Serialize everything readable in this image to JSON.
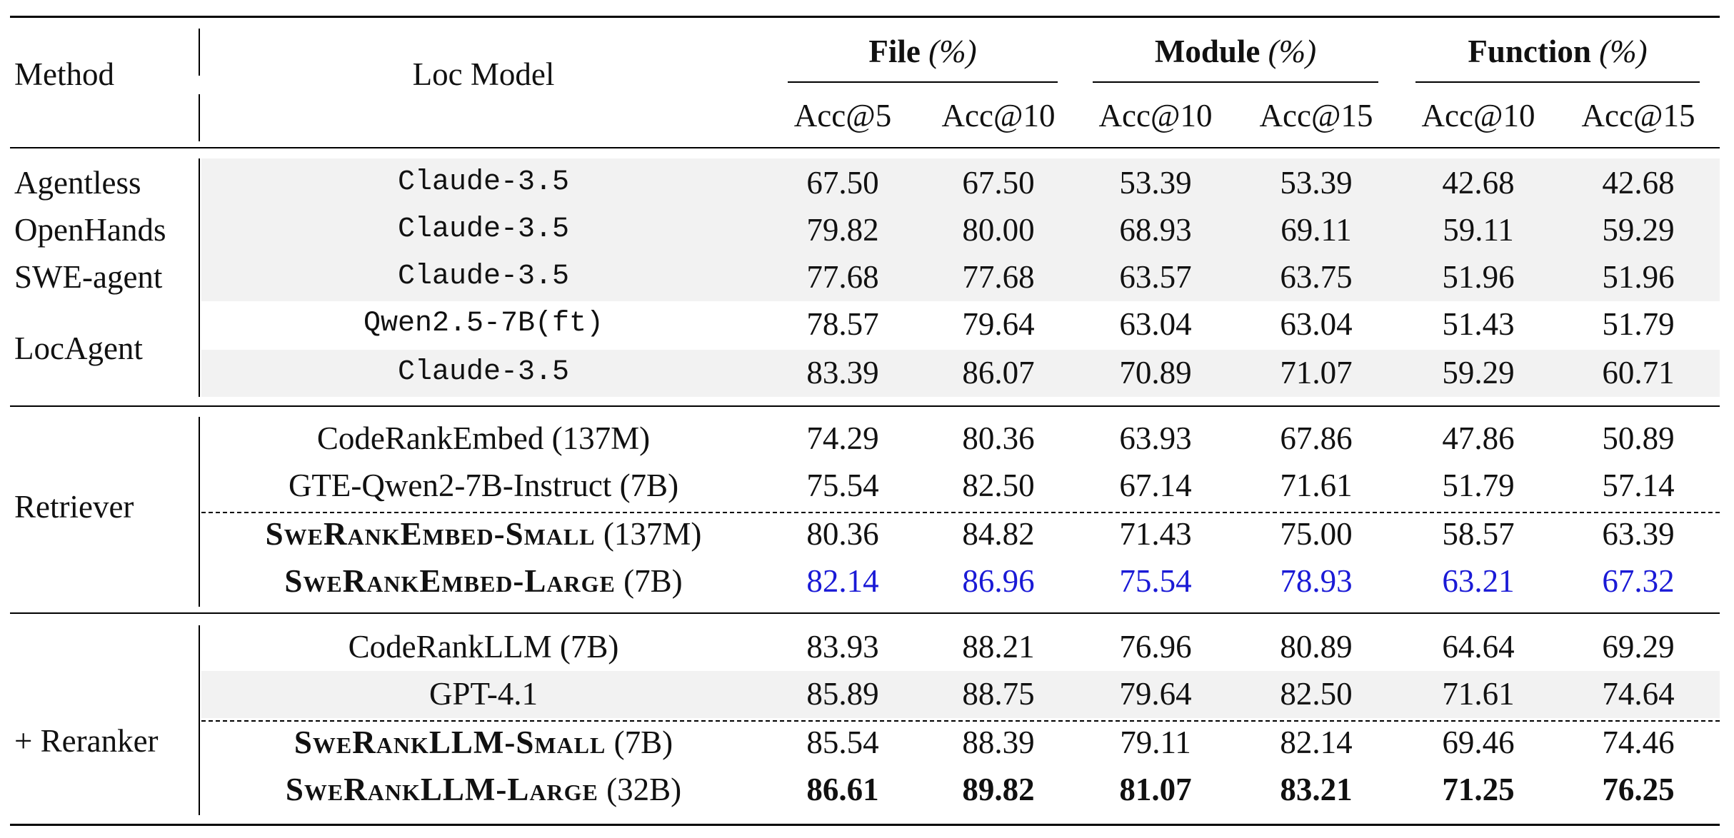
{
  "header": {
    "method": "Method",
    "loc_model": "Loc Model",
    "groups": [
      {
        "name": "File",
        "unit": "(%)",
        "cols": [
          "Acc@5",
          "Acc@10"
        ]
      },
      {
        "name": "Module",
        "unit": "(%)",
        "cols": [
          "Acc@10",
          "Acc@15"
        ]
      },
      {
        "name": "Function",
        "unit": "(%)",
        "cols": [
          "Acc@10",
          "Acc@15"
        ]
      }
    ]
  },
  "sections": {
    "agents": {
      "rows": [
        {
          "method": "Agentless",
          "model": "Claude-3.5",
          "values": [
            "67.50",
            "67.50",
            "53.39",
            "53.39",
            "42.68",
            "42.68"
          ]
        },
        {
          "method": "OpenHands",
          "model": "Claude-3.5",
          "values": [
            "79.82",
            "80.00",
            "68.93",
            "69.11",
            "59.11",
            "59.29"
          ]
        },
        {
          "method": "SWE-agent",
          "model": "Claude-3.5",
          "values": [
            "77.68",
            "77.68",
            "63.57",
            "63.75",
            "51.96",
            "51.96"
          ]
        },
        {
          "method": "LocAgent",
          "model": "Qwen2.5-7B(ft)",
          "values": [
            "78.57",
            "79.64",
            "63.04",
            "63.04",
            "51.43",
            "51.79"
          ]
        },
        {
          "method": "",
          "model": "Claude-3.5",
          "values": [
            "83.39",
            "86.07",
            "70.89",
            "71.07",
            "59.29",
            "60.71"
          ]
        }
      ]
    },
    "retriever": {
      "label": "Retriever",
      "rows": [
        {
          "model": "CodeRankEmbed",
          "size": "(137M)",
          "values": [
            "74.29",
            "80.36",
            "63.93",
            "67.86",
            "47.86",
            "50.89"
          ]
        },
        {
          "model": "GTE-Qwen2-7B-Instruct",
          "size": "(7B)",
          "values": [
            "75.54",
            "82.50",
            "67.14",
            "71.61",
            "51.79",
            "57.14"
          ]
        },
        {
          "model": "SweRankEmbed-Small",
          "size": "(137M)",
          "values": [
            "80.36",
            "84.82",
            "71.43",
            "75.00",
            "58.57",
            "63.39"
          ]
        },
        {
          "model": "SweRankEmbed-Large",
          "size": "(7B)",
          "values": [
            "82.14",
            "86.96",
            "75.54",
            "78.93",
            "63.21",
            "67.32"
          ]
        }
      ]
    },
    "reranker": {
      "label": "+ Reranker",
      "rows": [
        {
          "model": "CodeRankLLM",
          "size": "(7B)",
          "values": [
            "83.93",
            "88.21",
            "76.96",
            "80.89",
            "64.64",
            "69.29"
          ]
        },
        {
          "model": "GPT-4.1",
          "size": "",
          "values": [
            "85.89",
            "88.75",
            "79.64",
            "82.50",
            "71.61",
            "74.64"
          ]
        },
        {
          "model": "SweRankLLM-Small",
          "size": "(7B)",
          "values": [
            "85.54",
            "88.39",
            "79.11",
            "82.14",
            "69.46",
            "74.46"
          ]
        },
        {
          "model": "SweRankLLM-Large",
          "size": "(32B)",
          "values": [
            "86.61",
            "89.82",
            "81.07",
            "83.21",
            "71.25",
            "76.25"
          ]
        }
      ]
    }
  },
  "colors": {
    "highlight_blue": "#1a1ad6",
    "shade": "#f2f2f2"
  }
}
